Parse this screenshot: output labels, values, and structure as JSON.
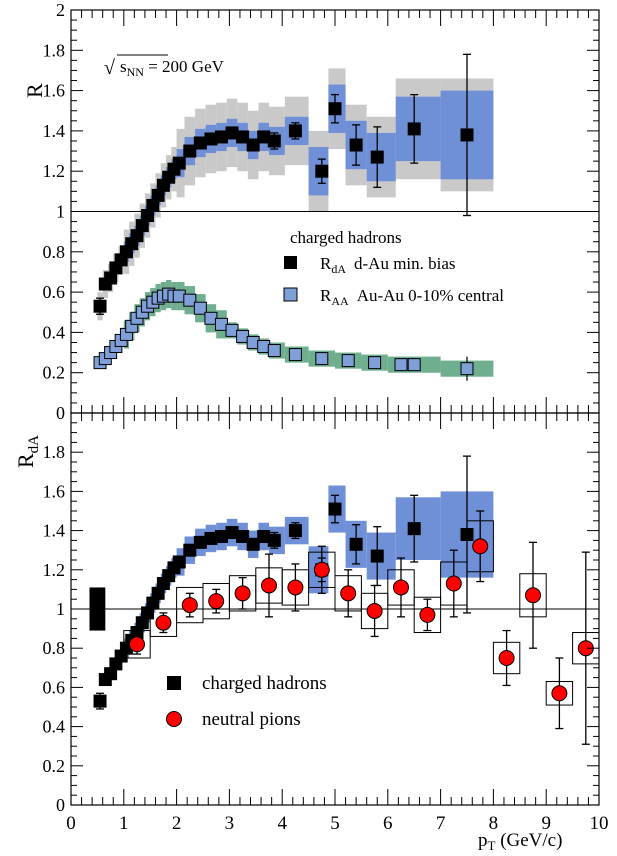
{
  "chart_data": [
    {
      "type": "scatter",
      "panel": "top",
      "ylabel": "R",
      "xlim": [
        0,
        10
      ],
      "ylim": [
        0,
        2
      ],
      "reference_line": 1,
      "annotation": {
        "prefix": "√",
        "sub": "NN",
        "base": "s",
        "suffix": " = 200 GeV"
      },
      "legend": {
        "position": "center-right",
        "title": "charged hadrons",
        "entries": [
          {
            "series": "dA",
            "symbol": "R",
            "sub": "dA",
            "text": "d-Au min. bias"
          },
          {
            "series": "AA",
            "symbol": "R",
            "sub": "AA",
            "text": "Au-Au 0-10% central"
          }
        ]
      },
      "series": [
        {
          "key": "dA",
          "color": "#000000",
          "sys_inner_color": "#6f8fd6",
          "sys_outer_color": "#c9c9c9",
          "points": [
            {
              "x": 0.55,
              "y": 0.53,
              "err": 0.04
            },
            {
              "x": 0.65,
              "y": 0.64
            },
            {
              "x": 0.75,
              "y": 0.67
            },
            {
              "x": 0.85,
              "y": 0.72
            },
            {
              "x": 0.95,
              "y": 0.76
            },
            {
              "x": 1.05,
              "y": 0.8
            },
            {
              "x": 1.15,
              "y": 0.84
            },
            {
              "x": 1.25,
              "y": 0.88
            },
            {
              "x": 1.35,
              "y": 0.93
            },
            {
              "x": 1.45,
              "y": 0.98
            },
            {
              "x": 1.55,
              "y": 1.03
            },
            {
              "x": 1.65,
              "y": 1.08
            },
            {
              "x": 1.75,
              "y": 1.13
            },
            {
              "x": 1.85,
              "y": 1.17
            },
            {
              "x": 1.95,
              "y": 1.21
            },
            {
              "x": 2.05,
              "y": 1.24
            },
            {
              "x": 2.25,
              "y": 1.3
            },
            {
              "x": 2.45,
              "y": 1.34
            },
            {
              "x": 2.65,
              "y": 1.36
            },
            {
              "x": 2.85,
              "y": 1.37
            },
            {
              "x": 3.05,
              "y": 1.39
            },
            {
              "x": 3.25,
              "y": 1.37
            },
            {
              "x": 3.45,
              "y": 1.33
            },
            {
              "x": 3.65,
              "y": 1.37
            },
            {
              "x": 3.85,
              "y": 1.35,
              "err": 0.04
            },
            {
              "x": 4.25,
              "y": 1.4,
              "err": 0.04
            },
            {
              "x": 4.75,
              "y": 1.2,
              "err": 0.06
            },
            {
              "x": 5.0,
              "y": 1.51,
              "err": 0.07
            },
            {
              "x": 5.4,
              "y": 1.33,
              "err": 0.1
            },
            {
              "x": 5.8,
              "y": 1.27,
              "err": 0.15
            },
            {
              "x": 6.5,
              "y": 1.41,
              "err": 0.17
            },
            {
              "x": 7.5,
              "y": 1.38,
              "err": 0.4
            }
          ],
          "bands": [
            {
              "x0": 0.5,
              "x1": 1.0,
              "inner": 0.03,
              "outer": 0.07
            },
            {
              "x0": 1.0,
              "x1": 2.0,
              "inner": 0.05,
              "outer": 0.11
            },
            {
              "x0": 2.0,
              "x1": 4.5,
              "inner": 0.07,
              "outer": 0.17
            },
            {
              "x0": 4.5,
              "x1": 6.0,
              "inner": 0.12,
              "outer": 0.2
            },
            {
              "x0": 6.0,
              "x1": 7.0,
              "inner": 0.16,
              "outer": 0.25
            },
            {
              "x0": 7.0,
              "x1": 8.0,
              "inner": 0.22,
              "outer": 0.28
            }
          ]
        },
        {
          "key": "AA",
          "color": "#7f9fd9",
          "sys_color": "#6fae8f",
          "points": [
            {
              "x": 0.55,
              "y": 0.25
            },
            {
              "x": 0.65,
              "y": 0.27
            },
            {
              "x": 0.75,
              "y": 0.3
            },
            {
              "x": 0.85,
              "y": 0.33
            },
            {
              "x": 0.95,
              "y": 0.36
            },
            {
              "x": 1.05,
              "y": 0.39
            },
            {
              "x": 1.15,
              "y": 0.43
            },
            {
              "x": 1.25,
              "y": 0.47
            },
            {
              "x": 1.35,
              "y": 0.5
            },
            {
              "x": 1.45,
              "y": 0.53
            },
            {
              "x": 1.55,
              "y": 0.55
            },
            {
              "x": 1.65,
              "y": 0.57
            },
            {
              "x": 1.75,
              "y": 0.58
            },
            {
              "x": 1.85,
              "y": 0.59
            },
            {
              "x": 1.95,
              "y": 0.58
            },
            {
              "x": 2.05,
              "y": 0.58
            },
            {
              "x": 2.25,
              "y": 0.56
            },
            {
              "x": 2.45,
              "y": 0.52
            },
            {
              "x": 2.65,
              "y": 0.47
            },
            {
              "x": 2.85,
              "y": 0.44
            },
            {
              "x": 3.05,
              "y": 0.41
            },
            {
              "x": 3.25,
              "y": 0.38
            },
            {
              "x": 3.45,
              "y": 0.35
            },
            {
              "x": 3.65,
              "y": 0.33
            },
            {
              "x": 3.85,
              "y": 0.31
            },
            {
              "x": 4.25,
              "y": 0.29
            },
            {
              "x": 4.75,
              "y": 0.27
            },
            {
              "x": 5.25,
              "y": 0.26
            },
            {
              "x": 5.75,
              "y": 0.25
            },
            {
              "x": 6.25,
              "y": 0.24
            },
            {
              "x": 6.5,
              "y": 0.24
            },
            {
              "x": 7.5,
              "y": 0.22,
              "err": 0.06
            }
          ],
          "bands": [
            {
              "x0": 0.5,
              "x1": 1.0,
              "half": 0.03
            },
            {
              "x0": 1.0,
              "x1": 2.0,
              "half": 0.07
            },
            {
              "x0": 2.0,
              "x1": 3.0,
              "half": 0.07
            },
            {
              "x0": 3.0,
              "x1": 4.5,
              "half": 0.04
            },
            {
              "x0": 4.5,
              "x1": 8.0,
              "half": 0.04
            }
          ]
        }
      ]
    },
    {
      "type": "scatter",
      "panel": "bottom",
      "ylabel": "R",
      "ylabel_sub": "dA",
      "xlabel": "p",
      "xlabel_sub": "T",
      "xlabel_unit": " (GeV/c)",
      "xlim": [
        0,
        10
      ],
      "ylim": [
        0,
        2
      ],
      "xticks": [
        0,
        1,
        2,
        3,
        4,
        5,
        6,
        7,
        8,
        9,
        10
      ],
      "yticks": [
        "0",
        "0.2",
        "0.4",
        "0.6",
        "0.8",
        "1",
        "1.2",
        "1.4",
        "1.6",
        "1.8"
      ],
      "reference_line": 1,
      "normalization_box": {
        "x0": 0.35,
        "x1": 0.65,
        "y0": 0.89,
        "y1": 1.11
      },
      "legend": {
        "position": "bottom-left",
        "entries": [
          {
            "series": "charged",
            "text": "charged hadrons"
          },
          {
            "series": "pi0",
            "text": "neutral pions"
          }
        ]
      },
      "series": [
        {
          "key": "charged",
          "color": "#000000",
          "sys_color": "#6f8fd6"
        },
        {
          "key": "pi0",
          "color": "#ff0000",
          "points": [
            {
              "x": 1.25,
              "y": 0.82,
              "err": 0.05,
              "sys": 0.07
            },
            {
              "x": 1.75,
              "y": 0.93,
              "err": 0.05,
              "sys": 0.07
            },
            {
              "x": 2.25,
              "y": 1.02,
              "err": 0.06,
              "sys": 0.09
            },
            {
              "x": 2.75,
              "y": 1.04,
              "err": 0.06,
              "sys": 0.09
            },
            {
              "x": 3.25,
              "y": 1.08,
              "err": 0.08,
              "sys": 0.09
            },
            {
              "x": 3.75,
              "y": 1.12,
              "err": 0.16,
              "sys": 0.09
            },
            {
              "x": 4.25,
              "y": 1.11,
              "err": 0.12,
              "sys": 0.09
            },
            {
              "x": 4.75,
              "y": 1.2,
              "err": 0.12,
              "sys": 0.09
            },
            {
              "x": 5.25,
              "y": 1.08,
              "err": 0.12,
              "sys": 0.09
            },
            {
              "x": 5.75,
              "y": 0.99,
              "err": 0.13,
              "sys": 0.09
            },
            {
              "x": 6.25,
              "y": 1.11,
              "err": 0.15,
              "sys": 0.09
            },
            {
              "x": 6.75,
              "y": 0.97,
              "err": 0.08,
              "sys": 0.09
            },
            {
              "x": 7.25,
              "y": 1.13,
              "err": 0.17,
              "sys": 0.11
            },
            {
              "x": 7.75,
              "y": 1.32,
              "err": 0.18,
              "sys": 0.13
            },
            {
              "x": 8.25,
              "y": 0.75,
              "err": 0.14,
              "sys": 0.08
            },
            {
              "x": 8.75,
              "y": 1.07,
              "err": 0.27,
              "sys": 0.11
            },
            {
              "x": 9.25,
              "y": 0.57,
              "err": 0.18,
              "sys": 0.06
            },
            {
              "x": 9.75,
              "y": 0.8,
              "err": 0.49,
              "sys": 0.08
            }
          ]
        }
      ]
    }
  ]
}
